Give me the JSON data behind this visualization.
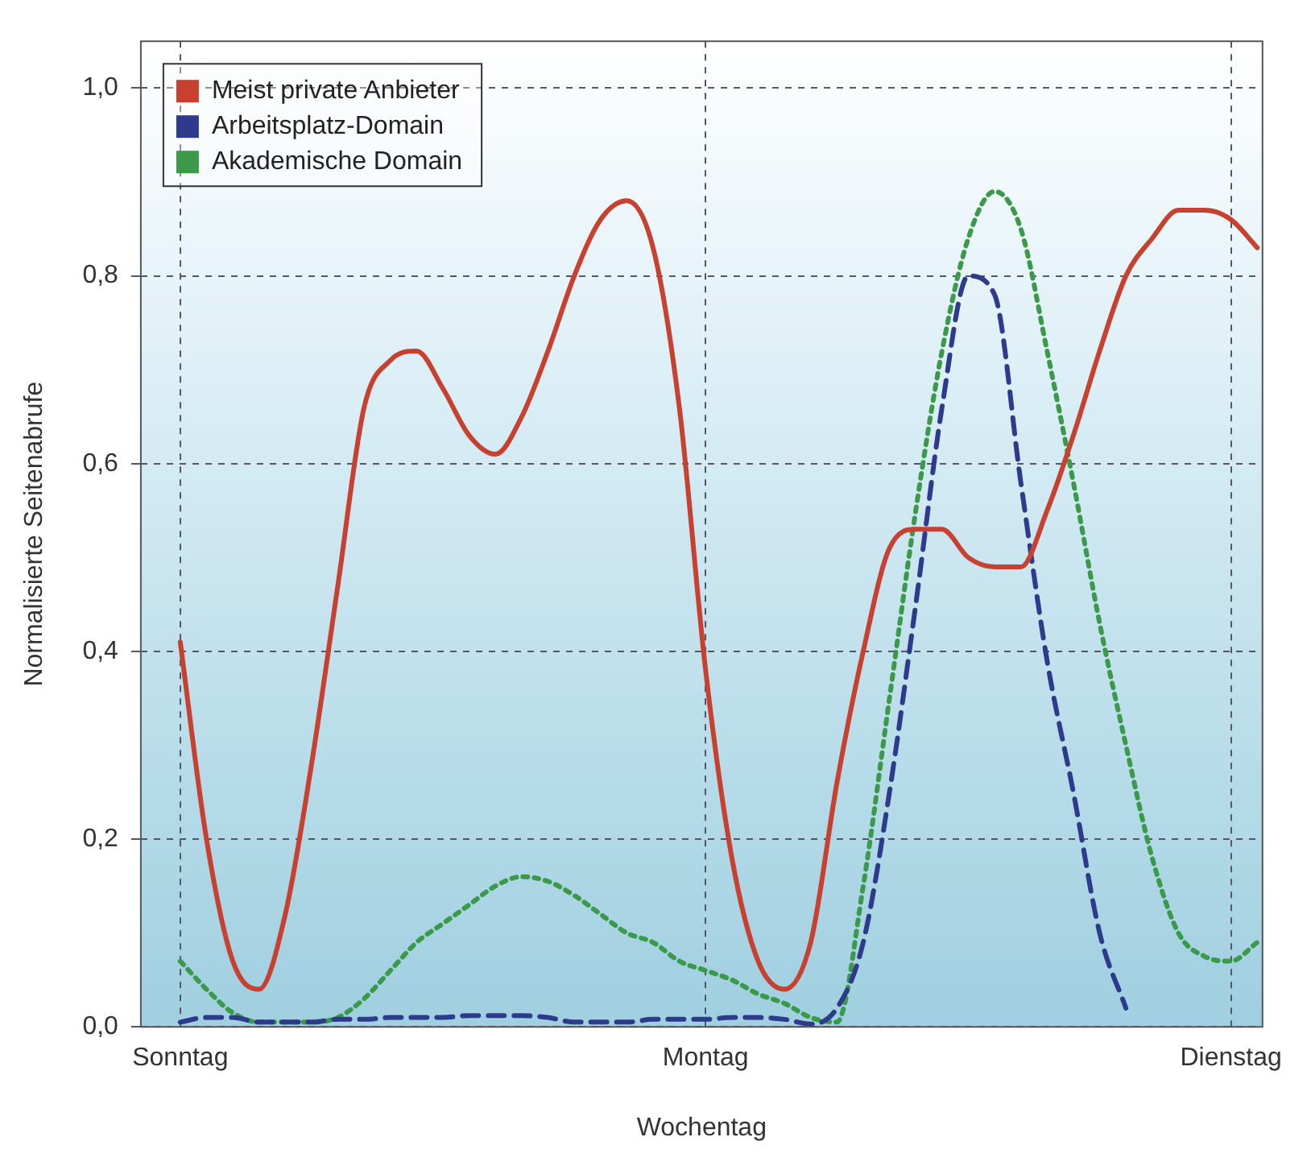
{
  "chart_data": {
    "type": "line",
    "xlabel": "Wochentag",
    "ylabel": "Normalisierte Seitenabrufe",
    "categories": [
      "Sonntag",
      null,
      null,
      null,
      null,
      null,
      null,
      null,
      null,
      null,
      null,
      null,
      null,
      null,
      null,
      null,
      null,
      null,
      null,
      null,
      "Montag",
      null,
      null,
      null,
      null,
      null,
      null,
      null,
      null,
      null,
      null,
      null,
      null,
      null,
      null,
      null,
      null,
      null,
      null,
      null,
      "Dienstag",
      null
    ],
    "ylim": [
      0,
      1.05
    ],
    "yticks": [
      {
        "value": 0,
        "label": "0,0"
      },
      {
        "value": 0.2,
        "label": "0,2"
      },
      {
        "value": 0.4,
        "label": "0,4"
      },
      {
        "value": 0.6,
        "label": "0,6"
      },
      {
        "value": 0.8,
        "label": "0,8"
      },
      {
        "value": 1,
        "label": "1,0"
      }
    ],
    "grid": true,
    "legend": "top left",
    "marker": "none",
    "series": [
      {
        "name": "Meist private Anbieter",
        "color": "#c8402f",
        "line_style": "solid",
        "values": [
          0.41,
          0.2,
          0.07,
          0.04,
          0.12,
          0.28,
          0.47,
          0.66,
          0.71,
          0.72,
          0.68,
          0.63,
          0.61,
          0.65,
          0.72,
          0.8,
          0.86,
          0.88,
          0.83,
          0.66,
          0.38,
          0.18,
          0.07,
          0.04,
          0.09,
          0.26,
          0.4,
          0.51,
          0.53,
          0.53,
          0.5,
          0.49,
          0.49,
          0.55,
          0.63,
          0.72,
          0.8,
          0.84,
          0.87,
          0.87,
          0.86,
          0.83
        ]
      },
      {
        "name": "Arbeitsplatz-Domain",
        "color": "#2e3a8c",
        "line_style": "dashed",
        "values": [
          0.005,
          0.01,
          0.01,
          0.005,
          0.005,
          0.005,
          0.008,
          0.008,
          0.01,
          0.01,
          0.01,
          0.012,
          0.012,
          0.012,
          0.01,
          0.005,
          0.005,
          0.005,
          0.008,
          0.008,
          0.008,
          0.01,
          0.01,
          0.008,
          0.003,
          0.02,
          0.09,
          0.25,
          0.45,
          0.66,
          0.8,
          0.78,
          0.58,
          0.39,
          0.25,
          0.1,
          0.02,
          null,
          null,
          null,
          null,
          null
        ]
      },
      {
        "name": "Akademische Domain",
        "color": "#3a9a4a",
        "line_style": "dotted",
        "values": [
          0.07,
          0.04,
          0.015,
          0.005,
          0.005,
          0.005,
          0.01,
          0.03,
          0.06,
          0.09,
          0.11,
          0.13,
          0.15,
          0.16,
          0.155,
          0.14,
          0.12,
          0.1,
          0.09,
          0.07,
          0.06,
          0.05,
          0.035,
          0.025,
          0.01,
          0.005,
          0.15,
          0.35,
          0.55,
          0.72,
          0.84,
          0.89,
          0.85,
          0.72,
          0.58,
          0.43,
          0.3,
          0.18,
          0.1,
          0.075,
          0.07,
          0.09
        ]
      }
    ]
  }
}
